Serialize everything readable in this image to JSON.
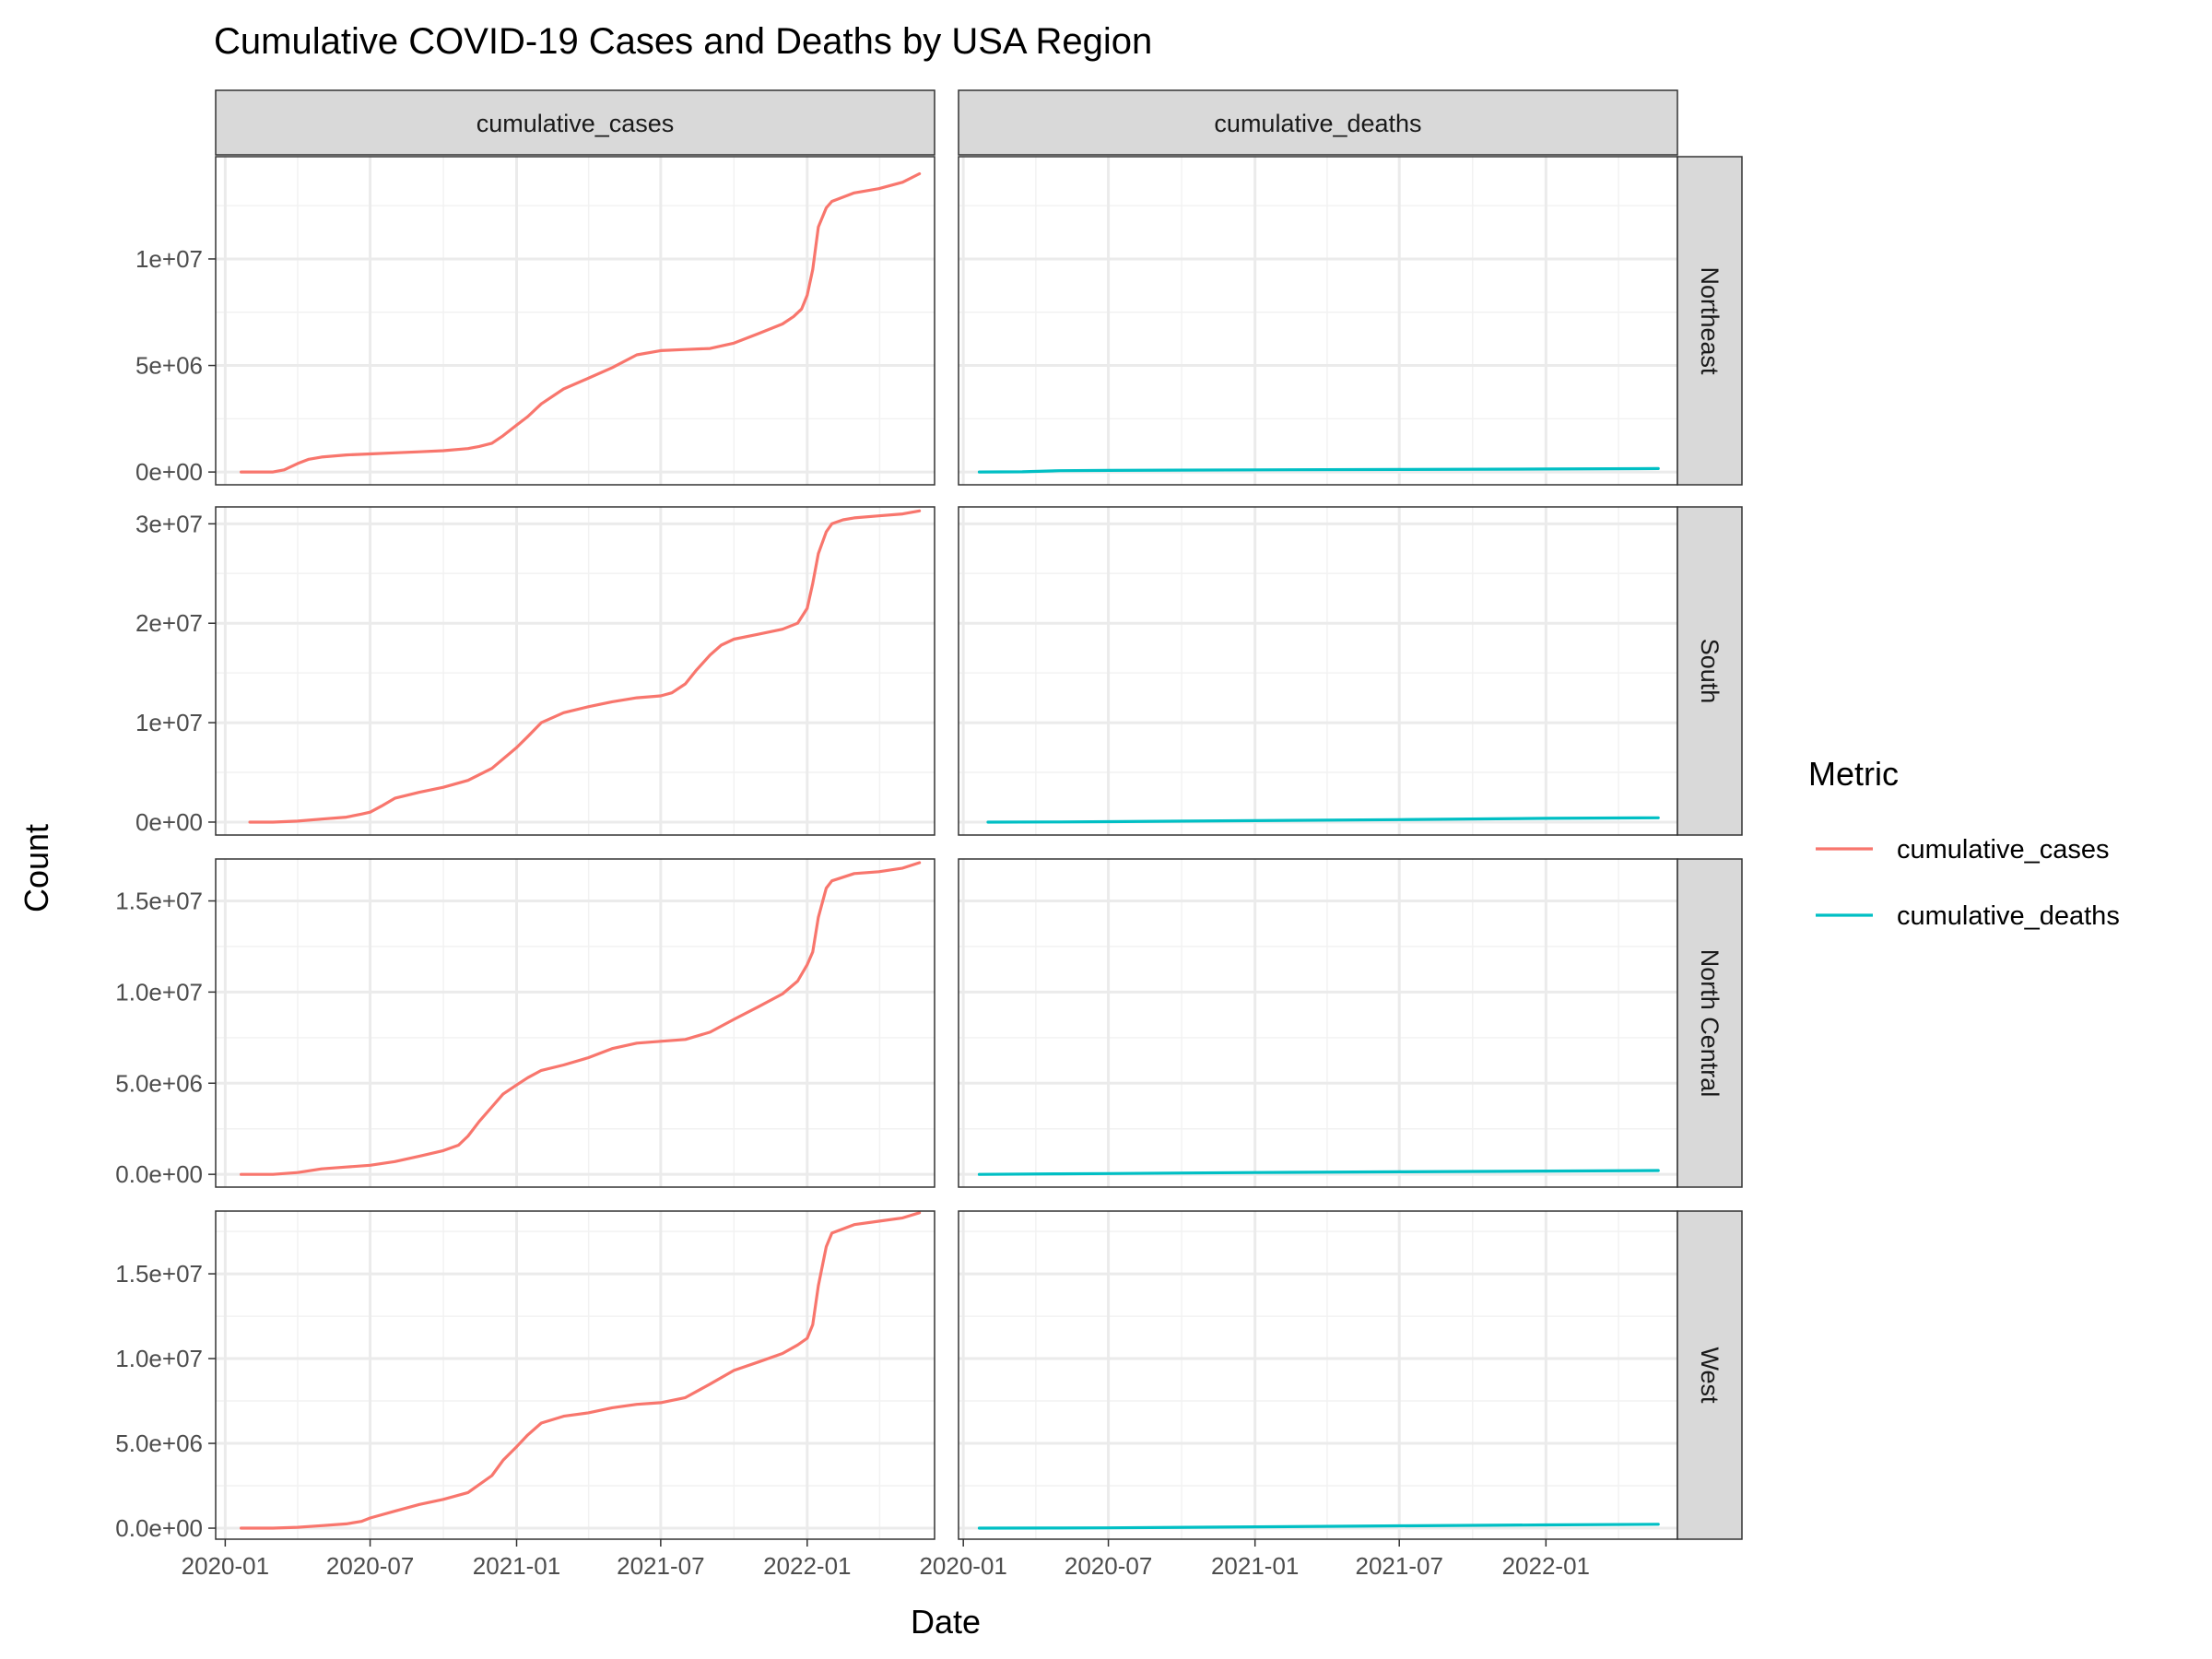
{
  "chart_data": {
    "type": "line",
    "title": "Cumulative COVID-19 Cases and Deaths by USA Region",
    "xlabel": "Date",
    "ylabel": "Count",
    "grid": true,
    "legend_position": "right",
    "legend": {
      "title": "Metric",
      "entries": [
        {
          "name": "cumulative_cases",
          "color": "#F8766D"
        },
        {
          "name": "cumulative_deaths",
          "color": "#00BFC4"
        }
      ]
    },
    "columns": [
      "cumulative_cases",
      "cumulative_deaths"
    ],
    "x_ticks": [
      "2020-01-01",
      "2020-07-01",
      "2021-01-01",
      "2021-07-01",
      "2022-01-01"
    ],
    "x_tick_labels": [
      "2020-01",
      "2020-07",
      "2021-01",
      "2021-07",
      "2022-01"
    ],
    "xlim_cases": [
      "2019-12-20",
      "2022-06-10"
    ],
    "xlim_deaths": [
      "2019-12-26",
      "2022-06-15"
    ],
    "rows": [
      {
        "region": "Northeast",
        "ylim": [
          -600000,
          14800000
        ],
        "y_ticks": [
          0,
          5000000,
          10000000
        ],
        "y_tick_labels": [
          "0e+00",
          "5e+06",
          "1e+07"
        ],
        "cases": {
          "x": [
            "2020-01-21",
            "2020-03-01",
            "2020-03-15",
            "2020-04-01",
            "2020-04-15",
            "2020-05-01",
            "2020-06-01",
            "2020-07-01",
            "2020-08-01",
            "2020-09-01",
            "2020-10-01",
            "2020-11-01",
            "2020-11-15",
            "2020-12-01",
            "2020-12-15",
            "2021-01-01",
            "2021-01-15",
            "2021-02-01",
            "2021-03-01",
            "2021-04-01",
            "2021-05-01",
            "2021-06-01",
            "2021-07-01",
            "2021-08-01",
            "2021-09-01",
            "2021-10-01",
            "2021-11-01",
            "2021-12-01",
            "2021-12-15",
            "2021-12-25",
            "2022-01-01",
            "2022-01-08",
            "2022-01-15",
            "2022-01-25",
            "2022-02-01",
            "2022-03-01",
            "2022-04-01",
            "2022-05-01",
            "2022-05-22"
          ],
          "y": [
            0,
            0,
            100000,
            400000,
            600000,
            700000,
            800000,
            850000,
            900000,
            950000,
            1000000,
            1100000,
            1200000,
            1350000,
            1700000,
            2200000,
            2600000,
            3200000,
            3900000,
            4400000,
            4900000,
            5500000,
            5700000,
            5750000,
            5800000,
            6050000,
            6500000,
            6950000,
            7300000,
            7650000,
            8300000,
            9500000,
            11500000,
            12400000,
            12700000,
            13100000,
            13300000,
            13600000,
            14000000
          ]
        },
        "deaths": {
          "x": [
            "2020-01-21",
            "2020-03-15",
            "2020-05-01",
            "2020-07-01",
            "2021-01-01",
            "2021-07-01",
            "2022-01-01",
            "2022-05-22"
          ],
          "y": [
            0,
            10000,
            60000,
            75000,
            100000,
            120000,
            140000,
            160000
          ]
        }
      },
      {
        "region": "South",
        "ylim": [
          -1300000,
          31700000
        ],
        "y_ticks": [
          0,
          10000000,
          20000000,
          30000000
        ],
        "y_tick_labels": [
          "0e+00",
          "1e+07",
          "2e+07",
          "3e+07"
        ],
        "cases": {
          "x": [
            "2020-02-01",
            "2020-03-01",
            "2020-04-01",
            "2020-05-01",
            "2020-06-01",
            "2020-06-20",
            "2020-07-01",
            "2020-07-15",
            "2020-08-01",
            "2020-09-01",
            "2020-10-01",
            "2020-11-01",
            "2020-12-01",
            "2021-01-01",
            "2021-01-15",
            "2021-02-01",
            "2021-03-01",
            "2021-04-01",
            "2021-05-01",
            "2021-06-01",
            "2021-07-01",
            "2021-07-15",
            "2021-08-01",
            "2021-08-15",
            "2021-09-01",
            "2021-09-15",
            "2021-10-01",
            "2021-11-01",
            "2021-12-01",
            "2021-12-20",
            "2022-01-01",
            "2022-01-08",
            "2022-01-15",
            "2022-01-25",
            "2022-02-01",
            "2022-02-15",
            "2022-03-01",
            "2022-04-01",
            "2022-05-01",
            "2022-05-22"
          ],
          "y": [
            0,
            0,
            100000,
            300000,
            500000,
            800000,
            1000000,
            1600000,
            2400000,
            3000000,
            3500000,
            4200000,
            5400000,
            7500000,
            8600000,
            10000000,
            11000000,
            11600000,
            12100000,
            12500000,
            12700000,
            13000000,
            13900000,
            15300000,
            16800000,
            17800000,
            18400000,
            18900000,
            19400000,
            20000000,
            21500000,
            24000000,
            27000000,
            29200000,
            30000000,
            30400000,
            30600000,
            30800000,
            31000000,
            31300000
          ]
        },
        "deaths": {
          "x": [
            "2020-02-01",
            "2020-05-01",
            "2020-07-01",
            "2021-01-01",
            "2021-07-01",
            "2022-01-01",
            "2022-05-22"
          ],
          "y": [
            0,
            20000,
            40000,
            150000,
            250000,
            380000,
            430000
          ]
        }
      },
      {
        "region": "North Central",
        "ylim": [
          -700000,
          17300000
        ],
        "y_ticks": [
          0,
          5000000,
          10000000,
          15000000
        ],
        "y_tick_labels": [
          "0.0e+00",
          "5.0e+06",
          "1.0e+07",
          "1.5e+07"
        ],
        "cases": {
          "x": [
            "2020-01-21",
            "2020-03-01",
            "2020-04-01",
            "2020-05-01",
            "2020-06-01",
            "2020-07-01",
            "2020-08-01",
            "2020-09-01",
            "2020-10-01",
            "2020-10-20",
            "2020-11-01",
            "2020-11-15",
            "2020-12-01",
            "2020-12-15",
            "2021-01-01",
            "2021-01-15",
            "2021-02-01",
            "2021-03-01",
            "2021-04-01",
            "2021-05-01",
            "2021-06-01",
            "2021-07-01",
            "2021-08-01",
            "2021-09-01",
            "2021-10-01",
            "2021-11-01",
            "2021-12-01",
            "2021-12-20",
            "2022-01-01",
            "2022-01-08",
            "2022-01-15",
            "2022-01-25",
            "2022-02-01",
            "2022-03-01",
            "2022-04-01",
            "2022-05-01",
            "2022-05-22"
          ],
          "y": [
            0,
            0,
            100000,
            300000,
            400000,
            500000,
            700000,
            1000000,
            1300000,
            1600000,
            2100000,
            2900000,
            3700000,
            4400000,
            4900000,
            5300000,
            5700000,
            6000000,
            6400000,
            6900000,
            7200000,
            7300000,
            7400000,
            7800000,
            8500000,
            9200000,
            9900000,
            10600000,
            11500000,
            12200000,
            14100000,
            15700000,
            16100000,
            16500000,
            16600000,
            16800000,
            17100000
          ]
        },
        "deaths": {
          "x": [
            "2020-01-21",
            "2020-05-01",
            "2020-07-01",
            "2021-01-01",
            "2021-07-01",
            "2022-01-01",
            "2022-05-22"
          ],
          "y": [
            0,
            30000,
            45000,
            100000,
            140000,
            180000,
            210000
          ]
        }
      },
      {
        "region": "West",
        "ylim": [
          -650000,
          18700000
        ],
        "y_ticks": [
          0,
          5000000,
          10000000,
          15000000
        ],
        "y_tick_labels": [
          "0.0e+00",
          "5.0e+06",
          "1.0e+07",
          "1.5e+07"
        ],
        "cases": {
          "x": [
            "2020-01-21",
            "2020-03-01",
            "2020-04-01",
            "2020-05-01",
            "2020-06-01",
            "2020-06-20",
            "2020-07-01",
            "2020-08-01",
            "2020-09-01",
            "2020-10-01",
            "2020-11-01",
            "2020-12-01",
            "2020-12-15",
            "2021-01-01",
            "2021-01-15",
            "2021-02-01",
            "2021-03-01",
            "2021-04-01",
            "2021-05-01",
            "2021-06-01",
            "2021-07-01",
            "2021-08-01",
            "2021-09-01",
            "2021-10-01",
            "2021-11-01",
            "2021-12-01",
            "2021-12-20",
            "2022-01-01",
            "2022-01-08",
            "2022-01-15",
            "2022-01-25",
            "2022-02-01",
            "2022-03-01",
            "2022-04-01",
            "2022-05-01",
            "2022-05-22"
          ],
          "y": [
            0,
            0,
            50000,
            150000,
            250000,
            400000,
            600000,
            1000000,
            1400000,
            1700000,
            2100000,
            3100000,
            4000000,
            4800000,
            5500000,
            6200000,
            6600000,
            6800000,
            7100000,
            7300000,
            7400000,
            7700000,
            8500000,
            9300000,
            9800000,
            10300000,
            10800000,
            11200000,
            12000000,
            14300000,
            16600000,
            17400000,
            17900000,
            18100000,
            18300000,
            18600000
          ]
        },
        "deaths": {
          "x": [
            "2020-01-21",
            "2020-05-01",
            "2020-07-01",
            "2021-01-01",
            "2021-07-01",
            "2022-01-01",
            "2022-05-22"
          ],
          "y": [
            0,
            10000,
            20000,
            80000,
            140000,
            190000,
            230000
          ]
        }
      }
    ]
  }
}
